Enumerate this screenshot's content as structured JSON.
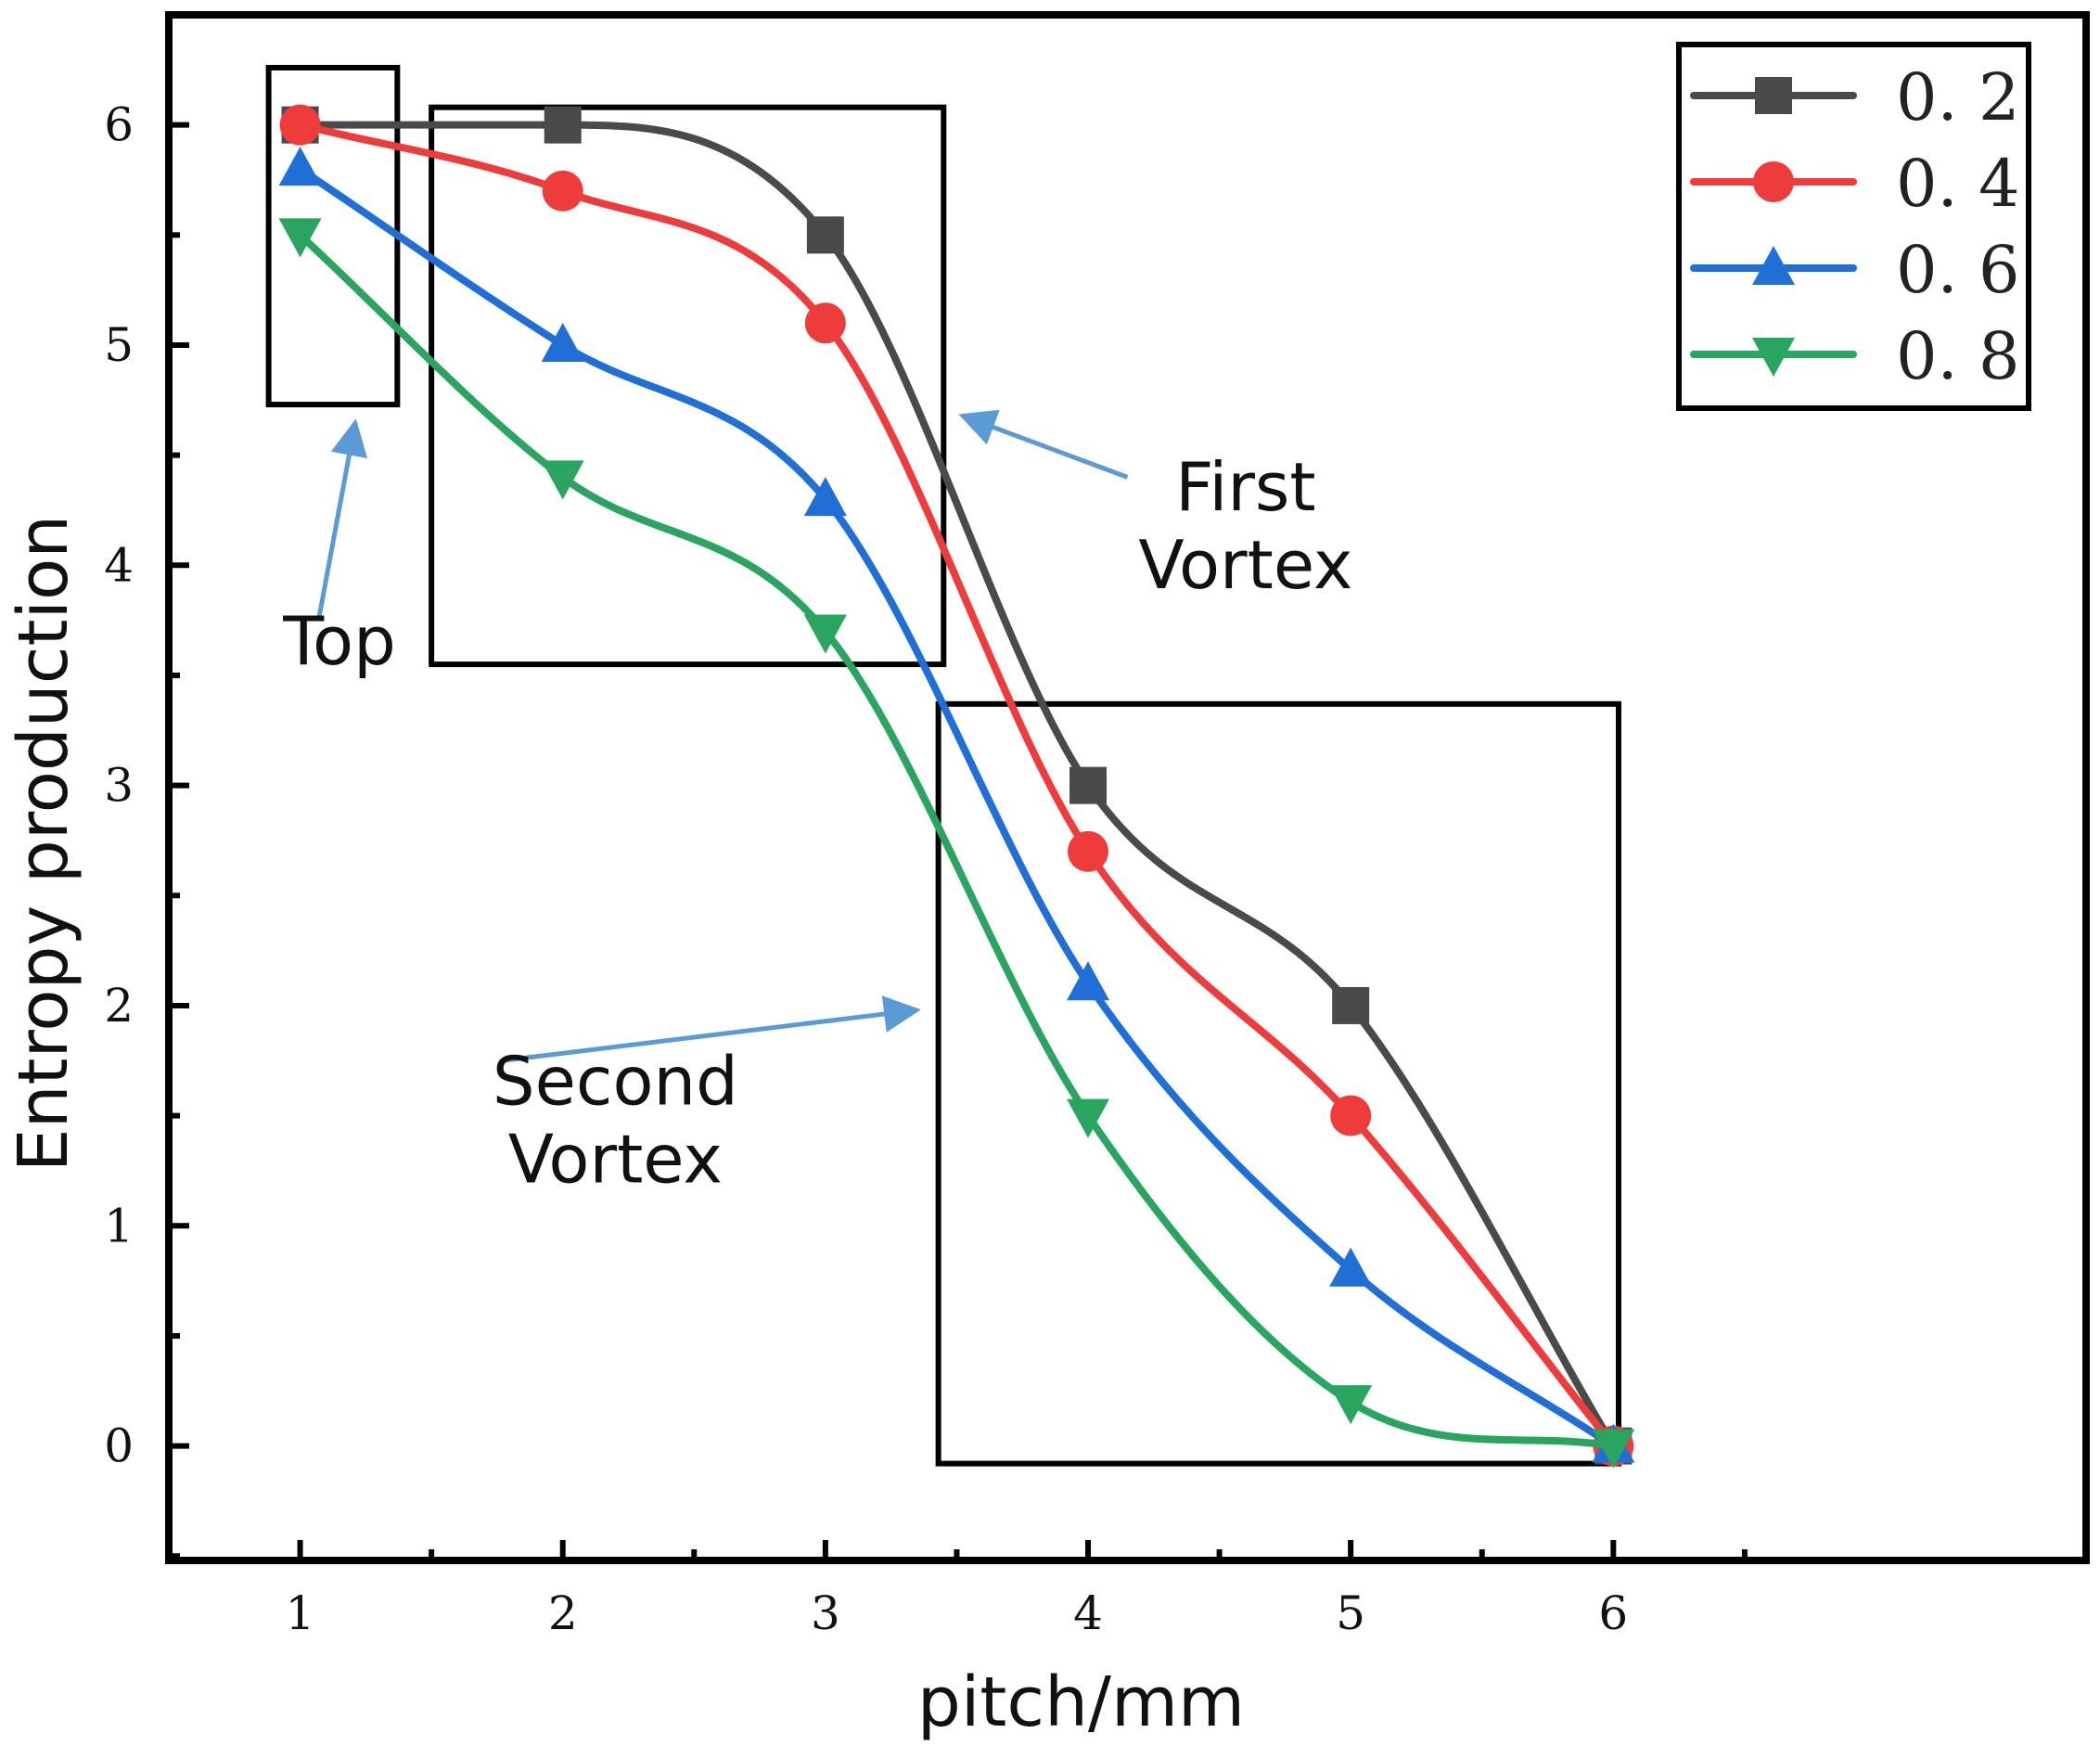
{
  "chart_data": {
    "type": "line",
    "title": "",
    "xlabel": "pitch/mm",
    "ylabel": "Entropy production",
    "x": [
      1,
      2,
      3,
      4,
      5,
      6
    ],
    "xlim": [
      0.5,
      7.8
    ],
    "ylim": [
      -0.52,
      6.5
    ],
    "xticks": [
      1,
      2,
      3,
      4,
      5,
      6
    ],
    "yticks": [
      0,
      1,
      2,
      3,
      4,
      5,
      6
    ],
    "grid": false,
    "legend_position": "top-right",
    "series": [
      {
        "name": "0. 2",
        "color": "#4a4a4a",
        "marker": "square",
        "values": [
          6.0,
          6.0,
          5.5,
          3.0,
          2.0,
          0.0
        ]
      },
      {
        "name": "0. 4",
        "color": "#ee3b3b",
        "marker": "circle",
        "values": [
          6.0,
          5.7,
          5.1,
          2.7,
          1.5,
          0.0
        ]
      },
      {
        "name": "0. 6",
        "color": "#1f6fd6",
        "marker": "triangle-up",
        "values": [
          5.8,
          5.0,
          4.3,
          2.1,
          0.8,
          0.0
        ]
      },
      {
        "name": "0. 8",
        "color": "#2aa55f",
        "marker": "triangle-down",
        "values": [
          5.5,
          4.4,
          3.7,
          1.5,
          0.2,
          0.0
        ]
      }
    ],
    "annotations": [
      {
        "id": "top",
        "lines": [
          "Top"
        ],
        "box": {
          "x": [
            0.88,
            1.37
          ],
          "y": [
            4.73,
            6.26
          ]
        },
        "text_at": [
          1.15,
          3.55
        ],
        "arrow_from": [
          1.07,
          3.75
        ],
        "arrow_to": [
          1.21,
          4.65
        ]
      },
      {
        "id": "first-vortex",
        "lines": [
          "First",
          "Vortex"
        ],
        "box": {
          "x": [
            1.5,
            3.45
          ],
          "y": [
            3.55,
            6.08
          ]
        },
        "text_at": [
          4.6,
          4.25
        ],
        "arrow_from": [
          4.15,
          4.4
        ],
        "arrow_to": [
          3.52,
          4.68
        ]
      },
      {
        "id": "second-vortex",
        "lines": [
          "Second",
          "Vortex"
        ],
        "box": {
          "x": [
            3.43,
            6.02
          ],
          "y": [
            -0.08,
            3.37
          ]
        },
        "text_at": [
          2.2,
          1.55
        ],
        "arrow_from": [
          1.77,
          1.75
        ],
        "arrow_to": [
          3.35,
          1.98
        ]
      }
    ]
  }
}
